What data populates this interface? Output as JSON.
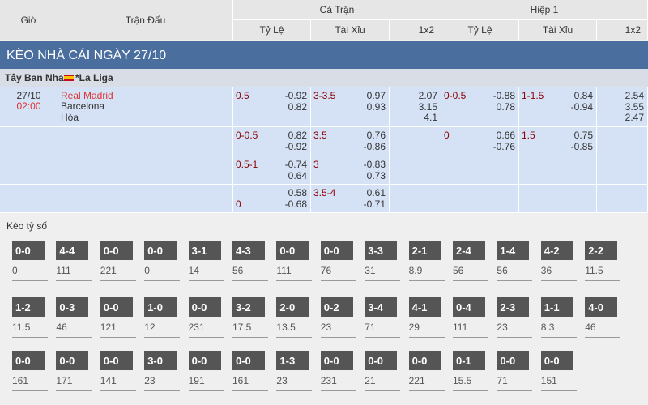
{
  "header": {
    "time": "Giờ",
    "match": "Trận Đấu",
    "full_time": "Cả Trận",
    "first_half": "Hiệp 1",
    "columns": [
      "Tỷ Lệ",
      "Tài Xỉu",
      "1x2",
      "Tỷ Lệ",
      "Tài Xỉu",
      "1x2"
    ]
  },
  "section_title": "KÈO NHÀ CÁI NGÀY 27/10",
  "league": {
    "country": "Tây Ban Nha",
    "name": "*La Liga"
  },
  "match": {
    "date": "27/10",
    "time": "02:00",
    "home": "Real Madrid",
    "away": "Barcelona",
    "draw": "Hòa",
    "rows": [
      [
        {
          "line": "0.5",
          "odds": [
            "-0.92",
            "0.82"
          ]
        },
        {
          "line": "3-3.5",
          "odds": [
            "0.97",
            "0.93"
          ]
        },
        {
          "odds": [
            "2.07",
            "3.15",
            "4.1"
          ]
        },
        {
          "line": "0-0.5",
          "odds": [
            "-0.88",
            "0.78"
          ]
        },
        {
          "line": "1-1.5",
          "odds": [
            "0.84",
            "-0.94"
          ]
        },
        {
          "odds": [
            "2.54",
            "3.55",
            "2.47"
          ]
        }
      ],
      [
        {
          "line": "0-0.5",
          "odds": [
            "0.82",
            "-0.92"
          ]
        },
        {
          "line": "3.5",
          "odds": [
            "0.76",
            "-0.86"
          ]
        },
        null,
        {
          "line": "0",
          "odds": [
            "0.66",
            "-0.76"
          ]
        },
        {
          "line": "1.5",
          "odds": [
            "0.75",
            "-0.85"
          ]
        },
        null
      ],
      [
        {
          "line": "0.5-1",
          "odds": [
            "-0.74",
            "0.64"
          ]
        },
        {
          "line": "3",
          "odds": [
            "-0.83",
            "0.73"
          ]
        },
        null,
        null,
        null,
        null
      ],
      [
        {
          "line": "0",
          "at": "bottom",
          "odds": [
            "0.58",
            "-0.68"
          ]
        },
        {
          "line": "3.5-4",
          "odds": [
            "0.61",
            "-0.71"
          ]
        },
        null,
        null,
        null,
        null
      ]
    ]
  },
  "correct_score": {
    "title": "Kèo tỷ số",
    "rows": [
      [
        {
          "score": "0-0",
          "odds": "0"
        },
        {
          "score": "4-4",
          "odds": "111"
        },
        {
          "score": "0-0",
          "odds": "221"
        },
        {
          "score": "0-0",
          "odds": "0"
        },
        {
          "score": "3-1",
          "odds": "14"
        },
        {
          "score": "4-3",
          "odds": "56"
        },
        {
          "score": "0-0",
          "odds": "111"
        },
        {
          "score": "0-0",
          "odds": "76"
        },
        {
          "score": "3-3",
          "odds": "31"
        },
        {
          "score": "2-1",
          "odds": "8.9"
        },
        {
          "score": "2-4",
          "odds": "56"
        },
        {
          "score": "1-4",
          "odds": "56"
        },
        {
          "score": "4-2",
          "odds": "36"
        },
        {
          "score": "2-2",
          "odds": "11.5"
        }
      ],
      [
        {
          "score": "1-2",
          "odds": "11.5"
        },
        {
          "score": "0-3",
          "odds": "46"
        },
        {
          "score": "0-0",
          "odds": "121"
        },
        {
          "score": "1-0",
          "odds": "12"
        },
        {
          "score": "0-0",
          "odds": "231"
        },
        {
          "score": "3-2",
          "odds": "17.5"
        },
        {
          "score": "2-0",
          "odds": "13.5"
        },
        {
          "score": "0-2",
          "odds": "23"
        },
        {
          "score": "3-4",
          "odds": "71"
        },
        {
          "score": "4-1",
          "odds": "29"
        },
        {
          "score": "0-4",
          "odds": "111"
        },
        {
          "score": "2-3",
          "odds": "23"
        },
        {
          "score": "1-1",
          "odds": "8.3"
        },
        {
          "score": "4-0",
          "odds": "46"
        }
      ],
      [
        {
          "score": "0-0",
          "odds": "161"
        },
        {
          "score": "0-0",
          "odds": "171"
        },
        {
          "score": "0-0",
          "odds": "141"
        },
        {
          "score": "3-0",
          "odds": "23"
        },
        {
          "score": "0-0",
          "odds": "191"
        },
        {
          "score": "0-0",
          "odds": "161"
        },
        {
          "score": "1-3",
          "odds": "23"
        },
        {
          "score": "0-0",
          "odds": "231"
        },
        {
          "score": "0-0",
          "odds": "21"
        },
        {
          "score": "0-0",
          "odds": "221"
        },
        {
          "score": "0-1",
          "odds": "15.5"
        },
        {
          "score": "0-0",
          "odds": "71"
        },
        {
          "score": "0-0",
          "odds": "151"
        }
      ]
    ]
  }
}
